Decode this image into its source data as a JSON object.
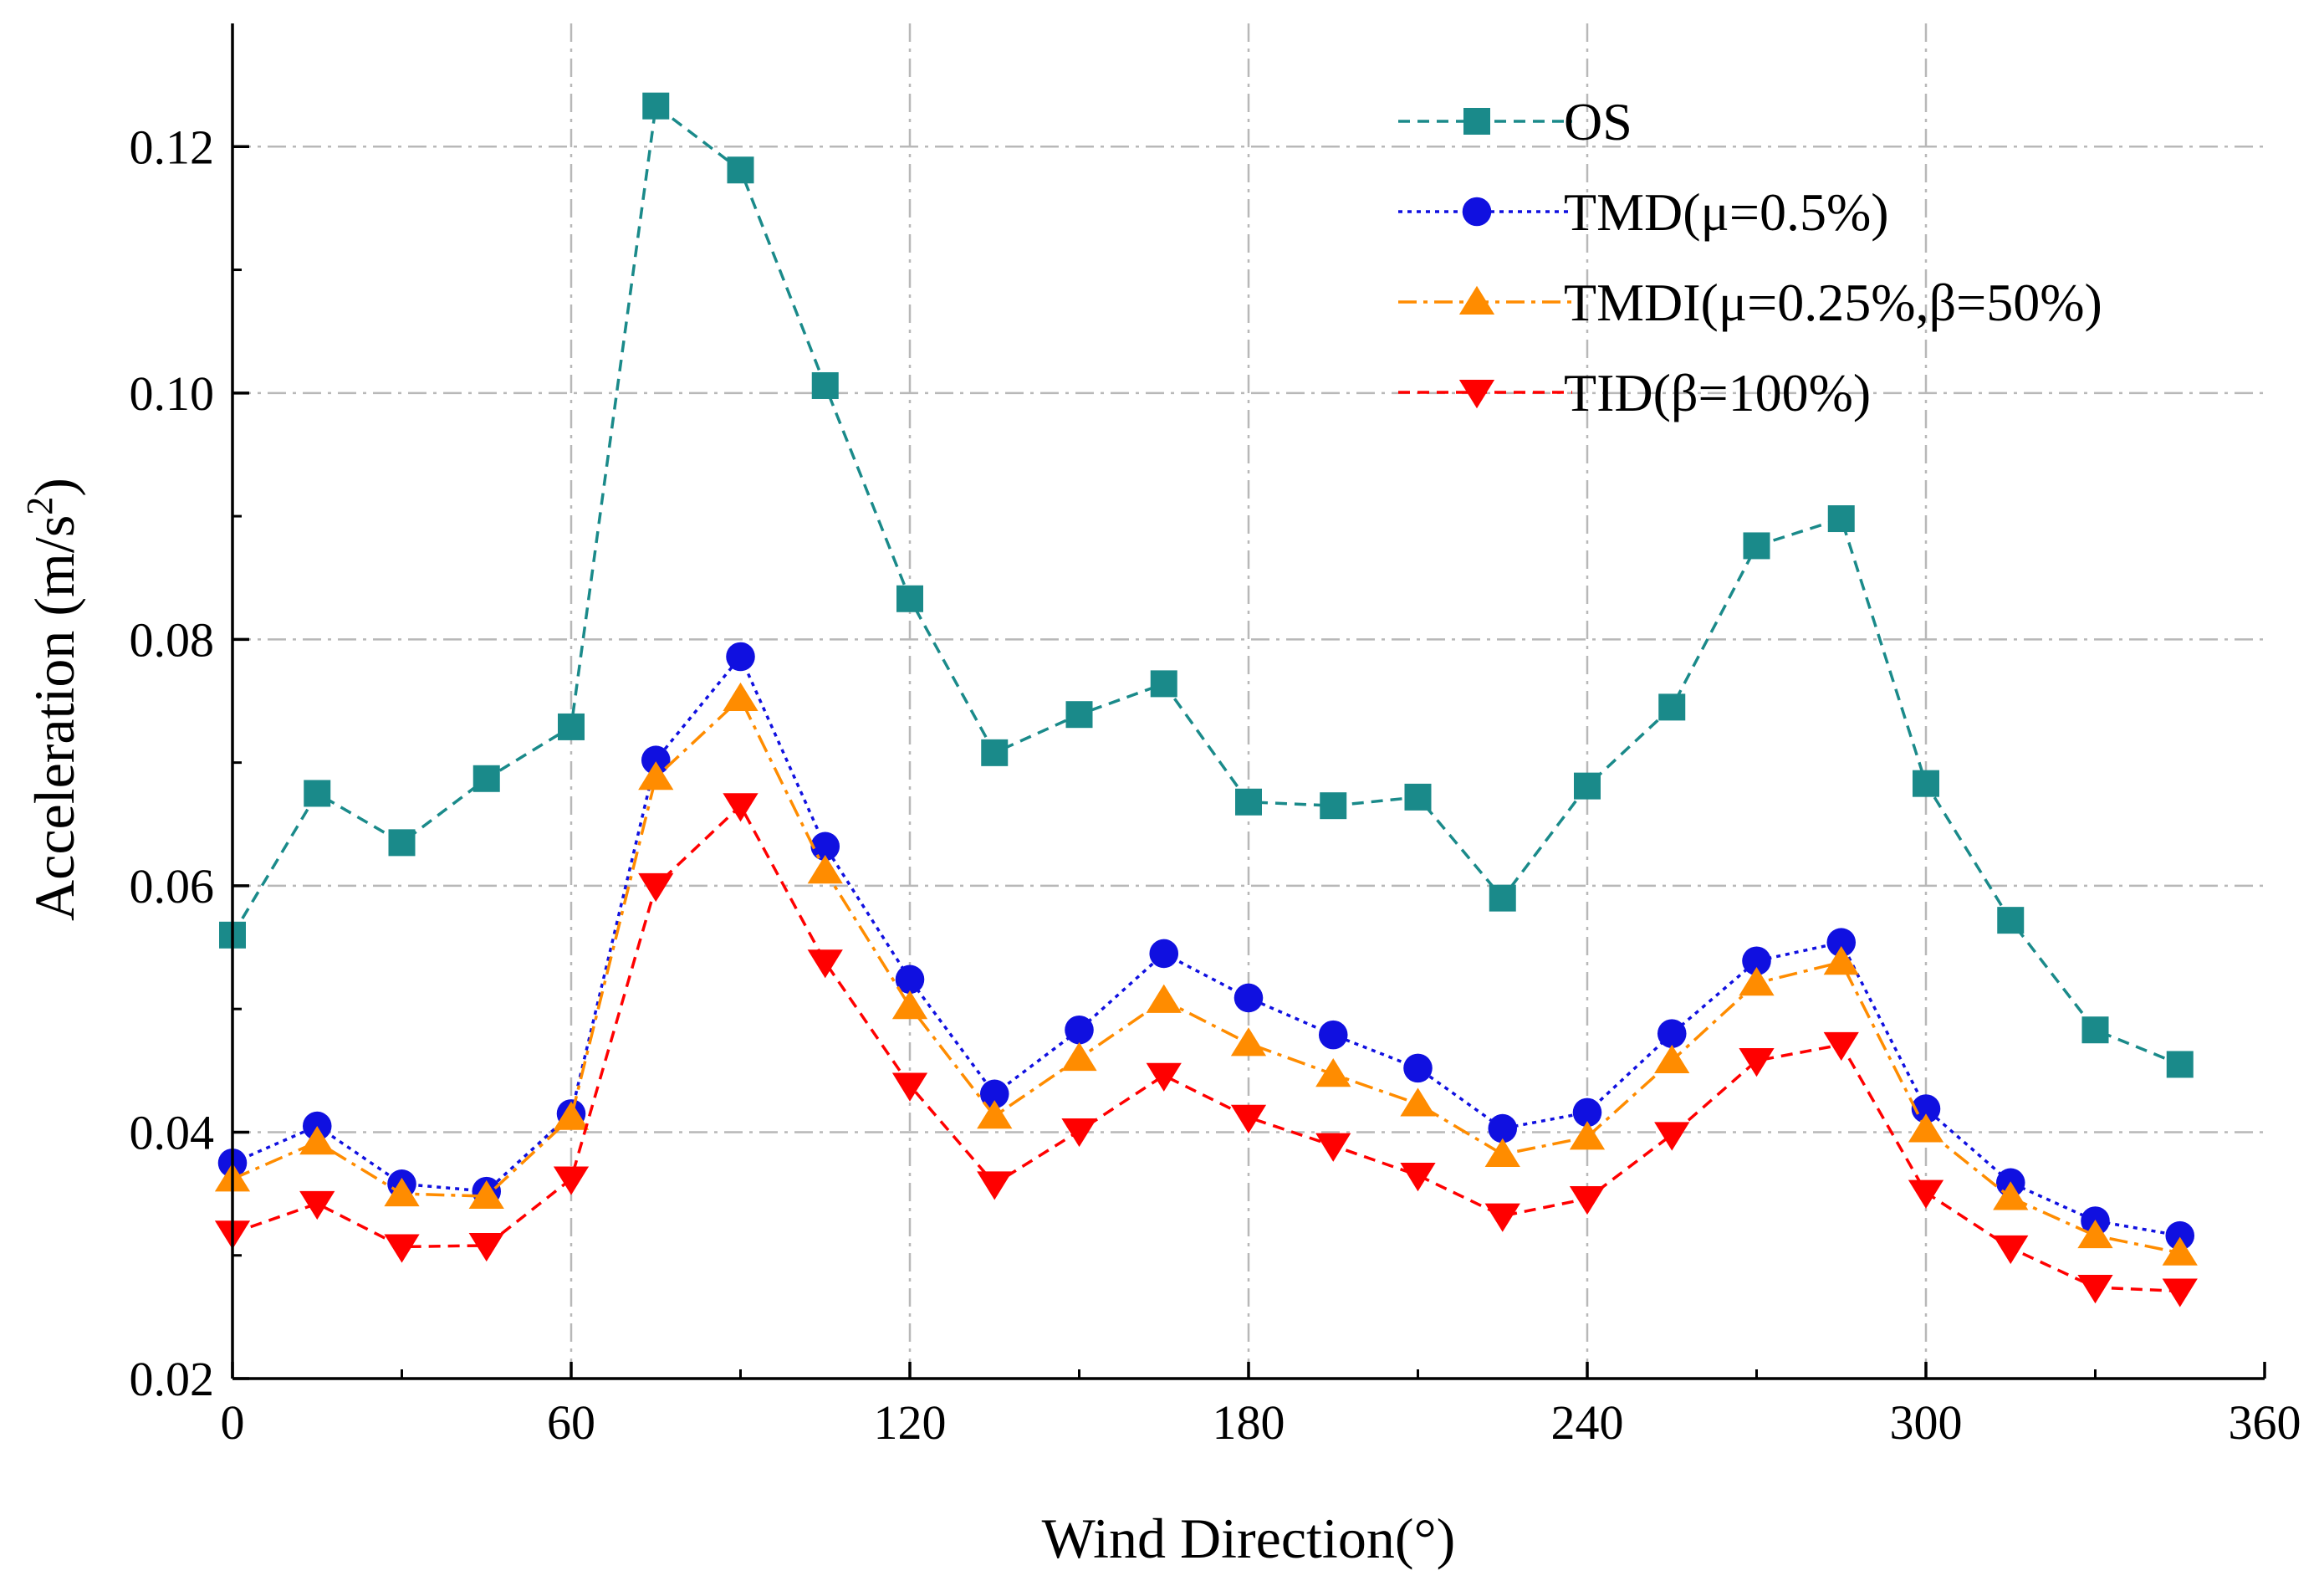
{
  "chart_data": {
    "type": "line",
    "xlabel": "Wind Direction(°)",
    "ylabel_main": "Acceleration (m/s",
    "ylabel_sup": "2",
    "ylabel_tail": ")",
    "xlim": [
      0,
      360
    ],
    "ylim": [
      0.02,
      0.13
    ],
    "xticks": [
      0,
      60,
      120,
      180,
      240,
      300,
      360
    ],
    "xtick_labels": [
      "0",
      "60",
      "120",
      "180",
      "240",
      "300",
      "360"
    ],
    "yticks": [
      0.02,
      0.04,
      0.06,
      0.08,
      0.1,
      0.12
    ],
    "ytick_labels": [
      "0.02",
      "0.04",
      "0.06",
      "0.08",
      "0.10",
      "0.12"
    ],
    "grid": true,
    "legend_position": "top-right",
    "x": [
      0,
      15,
      30,
      45,
      60,
      75,
      90,
      105,
      120,
      135,
      150,
      165,
      180,
      195,
      210,
      225,
      240,
      255,
      270,
      285,
      300,
      315,
      330,
      345
    ],
    "series": [
      {
        "name": "OS",
        "color": "#1a8a8a",
        "marker": "square",
        "dash": "dash",
        "values": [
          0.056,
          0.0675,
          0.0635,
          0.0687,
          0.0729,
          0.1233,
          0.1181,
          0.1006,
          0.0833,
          0.0708,
          0.0739,
          0.0764,
          0.0668,
          0.0665,
          0.0672,
          0.059,
          0.0681,
          0.0745,
          0.0876,
          0.0898,
          0.0683,
          0.0572,
          0.0483,
          0.0455
        ]
      },
      {
        "name": "TMD(μ=0.5%)",
        "color": "#1010e0",
        "marker": "circle",
        "dash": "dot",
        "values": [
          0.0375,
          0.0405,
          0.0358,
          0.0352,
          0.0415,
          0.0702,
          0.0786,
          0.0632,
          0.0524,
          0.0431,
          0.0483,
          0.0545,
          0.0509,
          0.0479,
          0.0452,
          0.0403,
          0.0416,
          0.048,
          0.0539,
          0.0554,
          0.0419,
          0.0359,
          0.0328,
          0.0316
        ]
      },
      {
        "name": "TMDI(μ=0.25%,β=50%)",
        "color": "#ff8c00",
        "marker": "triangle-up",
        "dash": "dashdot",
        "values": [
          0.0362,
          0.0392,
          0.035,
          0.0348,
          0.0412,
          0.0688,
          0.0752,
          0.0612,
          0.0502,
          0.0413,
          0.046,
          0.0507,
          0.0472,
          0.0447,
          0.0423,
          0.0382,
          0.0396,
          0.0458,
          0.0521,
          0.0538,
          0.0402,
          0.0347,
          0.0316,
          0.0302
        ]
      },
      {
        "name": "TID(β=100%)",
        "color": "#ff0000",
        "marker": "triangle-down",
        "dash": "dash",
        "values": [
          0.0318,
          0.0342,
          0.0307,
          0.0308,
          0.0362,
          0.06,
          0.0665,
          0.0538,
          0.0438,
          0.0358,
          0.0401,
          0.0446,
          0.0412,
          0.0389,
          0.0365,
          0.0332,
          0.0346,
          0.0398,
          0.0458,
          0.0471,
          0.0351,
          0.0306,
          0.0274,
          0.0271
        ]
      }
    ]
  }
}
